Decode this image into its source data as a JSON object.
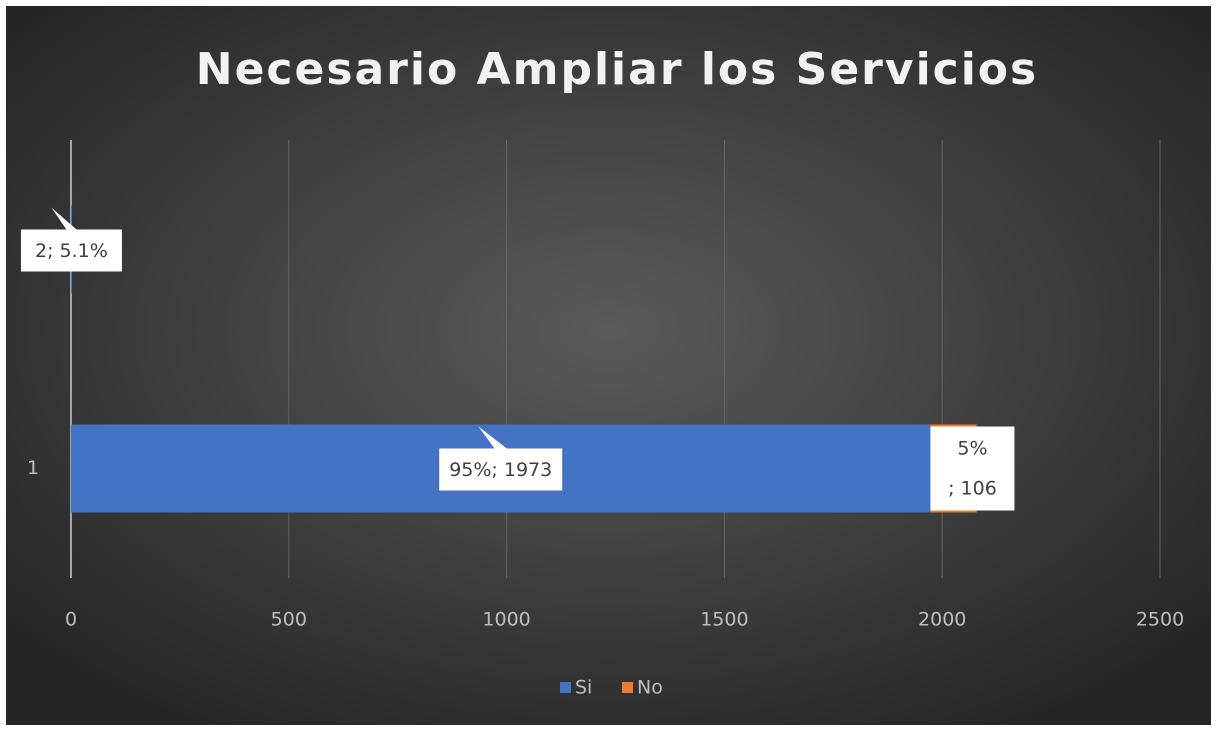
{
  "chart_data": {
    "type": "stacked_barh",
    "title": "Necesario Ampliar los Servicios",
    "categories": [
      "1",
      null
    ],
    "series": [
      {
        "name": "Si",
        "color": "#4472c4",
        "values": [
          1973,
          2
        ],
        "value_labels": [
          "95%; 1973",
          "2; 5.1%"
        ]
      },
      {
        "name": "No",
        "color": "#ed7d31",
        "values": [
          106,
          null
        ],
        "value_labels": [
          "5%; 106",
          null
        ]
      }
    ],
    "xlim": [
      0,
      2500
    ],
    "xticks": [
      0,
      500,
      1000,
      1500,
      2000,
      2500
    ],
    "grid": true,
    "legend": "bottom"
  }
}
